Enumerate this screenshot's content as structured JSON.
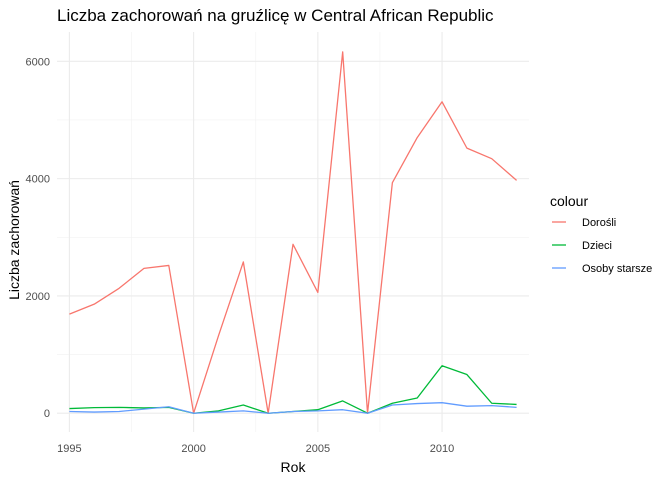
{
  "chart_data": {
    "type": "line",
    "title": "Liczba zachorowań na gruźlicę w Central African Republic",
    "xlabel": "Rok",
    "ylabel": "Liczba zachorowań",
    "xlim": [
      1994.5,
      2013.5
    ],
    "ylim": [
      -320,
      6500
    ],
    "x_ticks": [
      1995,
      2000,
      2005,
      2010
    ],
    "y_ticks": [
      0,
      2000,
      4000,
      6000
    ],
    "grid": true,
    "legend": {
      "title": "colour",
      "position": "right"
    },
    "x": [
      1995,
      1996,
      1997,
      1998,
      1999,
      2000,
      2001,
      2002,
      2003,
      2004,
      2005,
      2006,
      2007,
      2008,
      2009,
      2010,
      2011,
      2012,
      2013
    ],
    "series": [
      {
        "name": "Dorośli",
        "color": "#F8766D",
        "values": [
          1690,
          1860,
          2130,
          2470,
          2520,
          0,
          1320,
          2580,
          0,
          2880,
          2060,
          6160,
          0,
          3930,
          4700,
          5310,
          4520,
          4340,
          3970
        ]
      },
      {
        "name": "Dzieci",
        "color": "#00BA38",
        "values": [
          80,
          95,
          100,
          90,
          100,
          0,
          40,
          140,
          0,
          30,
          60,
          210,
          0,
          170,
          260,
          810,
          660,
          170,
          150
        ]
      },
      {
        "name": "Osoby starsze",
        "color": "#619CFF",
        "values": [
          30,
          20,
          30,
          70,
          110,
          0,
          20,
          40,
          0,
          30,
          40,
          60,
          0,
          140,
          165,
          180,
          120,
          130,
          100
        ]
      }
    ]
  }
}
